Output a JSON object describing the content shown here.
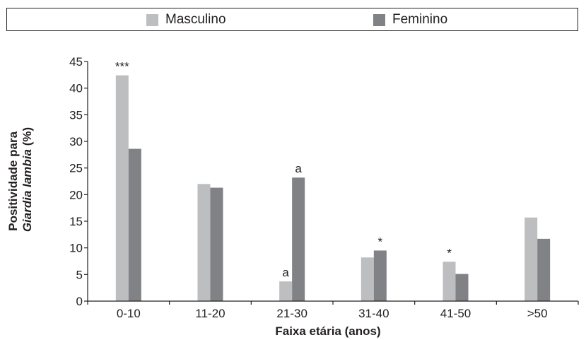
{
  "chart_data": {
    "type": "bar",
    "categories": [
      "0-10",
      "11-20",
      "21-30",
      "31-40",
      "41-50",
      ">50"
    ],
    "series": [
      {
        "name": "Masculino",
        "values": [
          42.4,
          22.0,
          3.7,
          8.2,
          7.4,
          15.7
        ],
        "color": "#bcbec0"
      },
      {
        "name": "Feminino",
        "values": [
          28.6,
          21.3,
          23.2,
          9.5,
          5.1,
          11.7
        ],
        "color": "#808285"
      }
    ],
    "annotations": [
      {
        "category": 0,
        "series": 0,
        "text": "***"
      },
      {
        "category": 2,
        "series": 0,
        "text": "a"
      },
      {
        "category": 2,
        "series": 1,
        "text": "a"
      },
      {
        "category": 3,
        "series": 1,
        "text": "*"
      },
      {
        "category": 4,
        "series": 0,
        "text": "*"
      }
    ],
    "xlabel": "Faixa etária (anos)",
    "ylabel_line1": "Positividade para",
    "ylabel_line2_italic": "Giardia lambia",
    "ylabel_line2_rest": " (%)",
    "ylim": [
      0,
      45
    ],
    "yticks": [
      0,
      5,
      10,
      15,
      20,
      25,
      30,
      35,
      40,
      45
    ],
    "legend_position": "top",
    "grid": false
  }
}
